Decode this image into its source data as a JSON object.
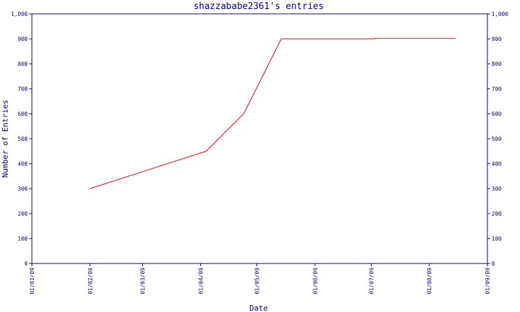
{
  "chart_data": {
    "type": "line",
    "title": "shazzababe2361's entries",
    "xlabel": "Date",
    "ylabel": "Number of Entries",
    "x_ticks": [
      "01/01/09",
      "01/02/09",
      "01/03/09",
      "01/04/09",
      "01/05/09",
      "01/06/09",
      "01/07/09",
      "01/08/09",
      "01/09/09"
    ],
    "y_ticks": [
      "0",
      "100",
      "200",
      "300",
      "400",
      "500",
      "600",
      "700",
      "800",
      "900",
      "1,000"
    ],
    "ylim": [
      0,
      1000
    ],
    "xlim": [
      "2009-01-01",
      "2009-09-01"
    ],
    "grid": false,
    "series": [
      {
        "color": "#ff0000",
        "points": [
          {
            "x": "2009-02-01",
            "y": 300
          },
          {
            "x": "2009-04-04",
            "y": 450
          },
          {
            "x": "2009-04-24",
            "y": 600
          },
          {
            "x": "2009-05-14",
            "y": 900
          },
          {
            "x": "2009-07-03",
            "y": 900
          },
          {
            "x": "2009-07-03",
            "y": 902
          },
          {
            "x": "2009-08-15",
            "y": 902
          }
        ]
      }
    ],
    "colors": {
      "axis": "#000080",
      "text": "#000080",
      "line": "#ff0000"
    }
  }
}
